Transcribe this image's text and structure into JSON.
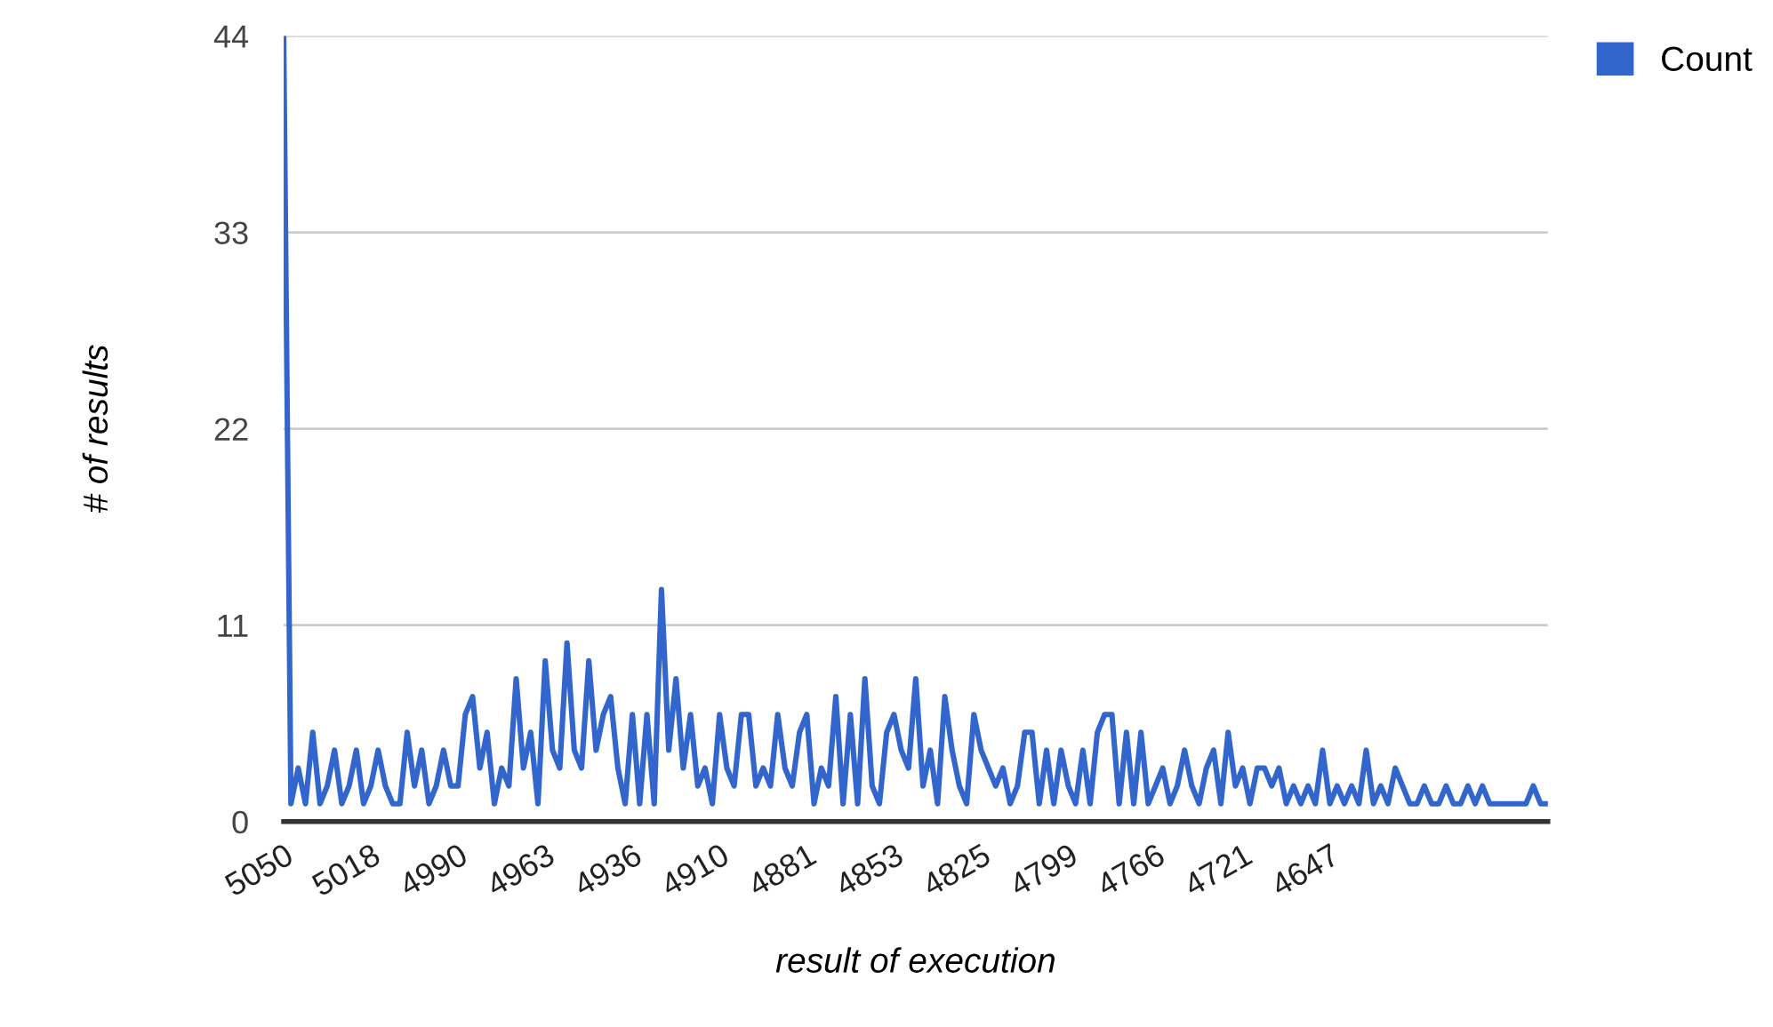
{
  "chart_data": {
    "type": "line",
    "xlabel": "result of execution",
    "ylabel": "# of results",
    "categories": [
      "5050",
      null,
      null,
      null,
      null,
      null,
      null,
      null,
      null,
      null,
      null,
      null,
      "5018",
      null,
      null,
      null,
      null,
      null,
      null,
      null,
      null,
      null,
      null,
      null,
      "4990",
      null,
      null,
      null,
      null,
      null,
      null,
      null,
      null,
      null,
      null,
      null,
      "4963",
      null,
      null,
      null,
      null,
      null,
      null,
      null,
      null,
      null,
      null,
      null,
      "4936",
      null,
      null,
      null,
      null,
      null,
      null,
      null,
      null,
      null,
      null,
      null,
      "4910",
      null,
      null,
      null,
      null,
      null,
      null,
      null,
      null,
      null,
      null,
      null,
      "4881",
      null,
      null,
      null,
      null,
      null,
      null,
      null,
      null,
      null,
      null,
      null,
      "4853",
      null,
      null,
      null,
      null,
      null,
      null,
      null,
      null,
      null,
      null,
      null,
      "4825",
      null,
      null,
      null,
      null,
      null,
      null,
      null,
      null,
      null,
      null,
      null,
      "4799",
      null,
      null,
      null,
      null,
      null,
      null,
      null,
      null,
      null,
      null,
      null,
      "4766",
      null,
      null,
      null,
      null,
      null,
      null,
      null,
      null,
      null,
      null,
      null,
      "4721",
      null,
      null,
      null,
      null,
      null,
      null,
      null,
      null,
      null,
      null,
      null,
      "4647",
      null,
      null,
      null,
      null,
      null,
      null,
      null,
      null,
      null,
      null,
      null,
      null,
      null,
      null,
      null,
      null,
      null,
      null,
      null,
      null,
      null,
      null,
      null,
      null,
      null,
      null,
      null,
      null,
      null,
      null
    ],
    "series": [
      {
        "name": "Count",
        "color": "#3366cc",
        "values": [
          44,
          1,
          3,
          1,
          5,
          1,
          2,
          4,
          1,
          2,
          4,
          1,
          2,
          4,
          2,
          1,
          1,
          5,
          2,
          4,
          1,
          2,
          4,
          2,
          2,
          6,
          7,
          3,
          5,
          1,
          3,
          2,
          8,
          3,
          5,
          1,
          9,
          4,
          3,
          10,
          4,
          3,
          9,
          4,
          6,
          7,
          3,
          1,
          6,
          1,
          6,
          1,
          13,
          4,
          8,
          3,
          6,
          2,
          3,
          1,
          6,
          3,
          2,
          6,
          6,
          2,
          3,
          2,
          6,
          3,
          2,
          5,
          6,
          1,
          3,
          2,
          7,
          1,
          6,
          1,
          8,
          2,
          1,
          5,
          6,
          4,
          3,
          8,
          2,
          4,
          1,
          7,
          4,
          2,
          1,
          6,
          4,
          3,
          2,
          3,
          1,
          2,
          5,
          5,
          1,
          4,
          1,
          4,
          2,
          1,
          4,
          1,
          5,
          6,
          6,
          1,
          5,
          1,
          5,
          1,
          2,
          3,
          1,
          2,
          4,
          2,
          1,
          3,
          4,
          1,
          5,
          2,
          3,
          1,
          3,
          3,
          2,
          3,
          1,
          2,
          1,
          2,
          1,
          4,
          1,
          2,
          1,
          2,
          1,
          4,
          1,
          2,
          1,
          3,
          2,
          1,
          1,
          2,
          1,
          1,
          2,
          1,
          1,
          2,
          1,
          2,
          1,
          1,
          1,
          1,
          1,
          1,
          2,
          1,
          1
        ]
      }
    ],
    "ylim": [
      0,
      44
    ],
    "yticks": [
      0,
      11,
      22,
      33,
      44
    ],
    "grid": "y",
    "legend": "top right",
    "marker": "none",
    "line_style": "solid"
  }
}
